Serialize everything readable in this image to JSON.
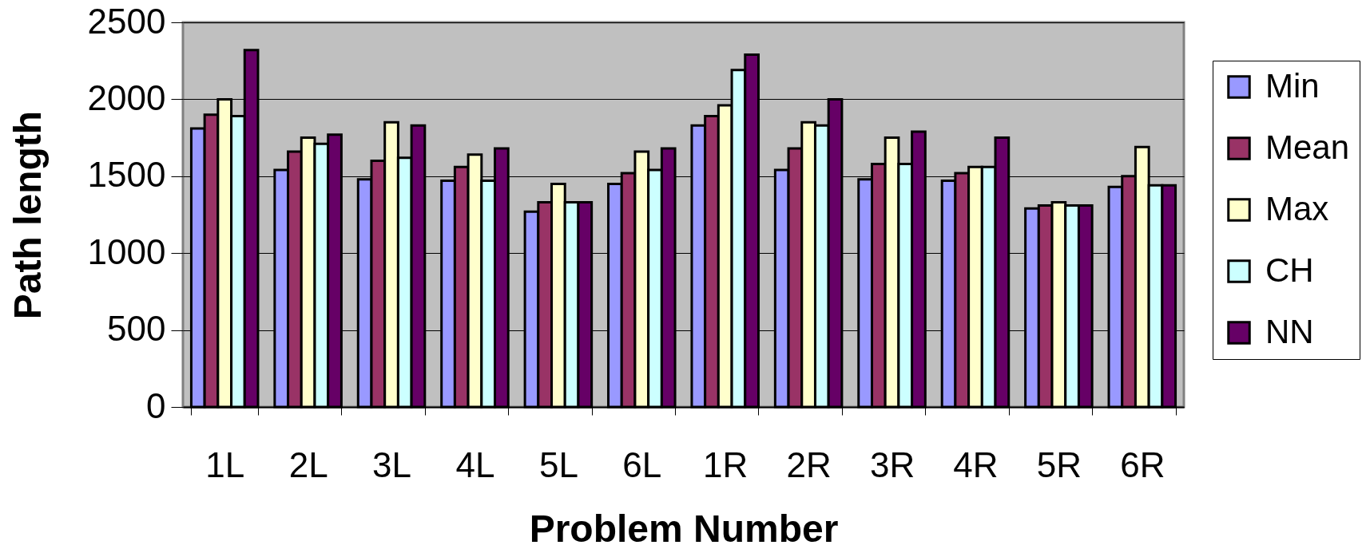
{
  "chart_data": {
    "type": "bar",
    "xlabel": "Problem Number",
    "ylabel": "Path length",
    "categories": [
      "1L",
      "2L",
      "3L",
      "4L",
      "5L",
      "6L",
      "1R",
      "2R",
      "3R",
      "4R",
      "5R",
      "6R"
    ],
    "series": [
      {
        "name": "Min",
        "color": "#9999ff",
        "values": [
          1810,
          1540,
          1480,
          1470,
          1270,
          1450,
          1830,
          1540,
          1480,
          1470,
          1290,
          1430
        ]
      },
      {
        "name": "Mean",
        "color": "#993366",
        "values": [
          1900,
          1660,
          1600,
          1560,
          1330,
          1520,
          1890,
          1680,
          1580,
          1520,
          1310,
          1500
        ]
      },
      {
        "name": "Max",
        "color": "#ffffcc",
        "values": [
          2000,
          1750,
          1850,
          1640,
          1450,
          1660,
          1960,
          1850,
          1750,
          1560,
          1330,
          1690
        ]
      },
      {
        "name": "CH",
        "color": "#ccffff",
        "values": [
          1890,
          1710,
          1620,
          1470,
          1330,
          1540,
          2190,
          1830,
          1580,
          1560,
          1310,
          1440
        ]
      },
      {
        "name": "NN",
        "color": "#660066",
        "values": [
          2320,
          1770,
          1830,
          1680,
          1330,
          1680,
          2290,
          2000,
          1790,
          1750,
          1310,
          1440
        ]
      }
    ],
    "ylim": [
      0,
      2500
    ],
    "yticks": [
      0,
      500,
      1000,
      1500,
      2000,
      2500
    ],
    "grid": "y",
    "legend": "right"
  }
}
